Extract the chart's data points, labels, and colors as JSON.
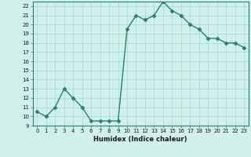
{
  "x": [
    0,
    1,
    2,
    3,
    4,
    5,
    6,
    7,
    8,
    9,
    10,
    11,
    12,
    13,
    14,
    15,
    16,
    17,
    18,
    19,
    20,
    21,
    22,
    23
  ],
  "y": [
    10.5,
    10.0,
    11.0,
    13.0,
    12.0,
    11.0,
    9.5,
    9.5,
    9.5,
    9.5,
    19.5,
    21.0,
    20.5,
    21.0,
    22.5,
    21.5,
    21.0,
    20.0,
    19.5,
    18.5,
    18.5,
    18.0,
    18.0,
    17.5
  ],
  "line_color": "#2e7d6e",
  "marker": "D",
  "marker_size": 2.5,
  "bg_color": "#d0f0ec",
  "grid_color": "#aadadd",
  "xlabel": "Humidex (Indice chaleur)",
  "xlim": [
    -0.5,
    23.5
  ],
  "ylim": [
    9,
    22.5
  ],
  "yticks": [
    9,
    10,
    11,
    12,
    13,
    14,
    15,
    16,
    17,
    18,
    19,
    20,
    21,
    22
  ],
  "xticks": [
    0,
    1,
    2,
    3,
    4,
    5,
    6,
    7,
    8,
    9,
    10,
    11,
    12,
    13,
    14,
    15,
    16,
    17,
    18,
    19,
    20,
    21,
    22,
    23
  ]
}
